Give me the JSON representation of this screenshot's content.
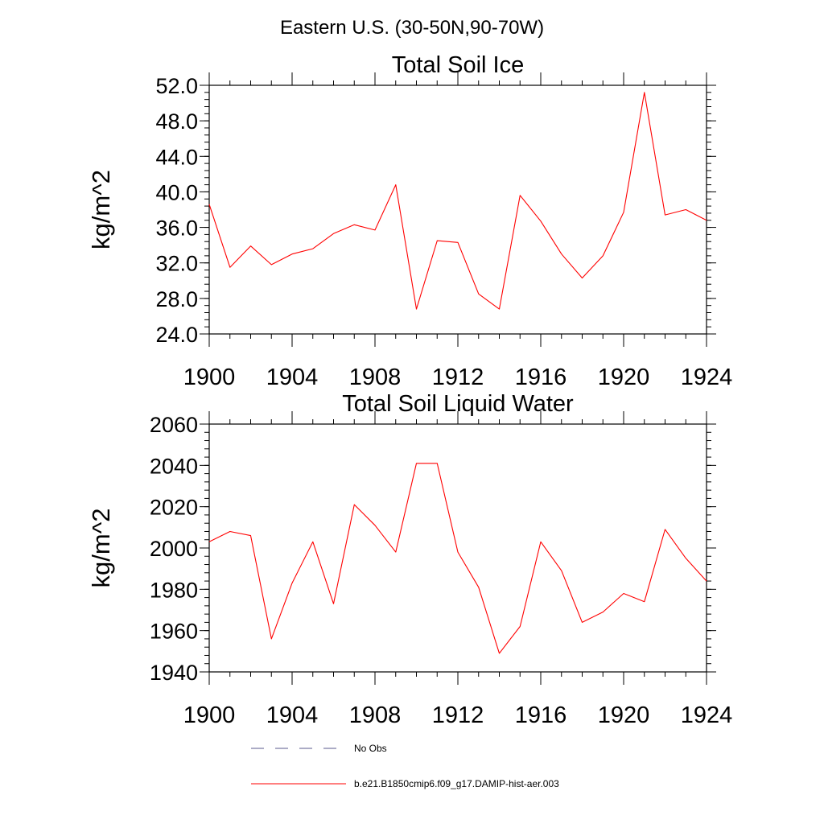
{
  "figure": {
    "suptitle": "Eastern U.S. (30-50N,90-70W)"
  },
  "legend": [
    {
      "label": "No Obs",
      "style": "dashed",
      "color": "#5a5a8c"
    },
    {
      "label": "b.e21.B1850cmip6.f09_g17.DAMIP-hist-aer.003",
      "style": "solid",
      "color": "#ff0000"
    }
  ],
  "chart_data": [
    {
      "type": "line",
      "title": "Total Soil Ice",
      "ylabel": "kg/m^2",
      "xlabel": "",
      "xlim": [
        1900,
        1924
      ],
      "ylim": [
        24.0,
        52.0
      ],
      "xticks": [
        "1900",
        "1904",
        "1908",
        "1912",
        "1916",
        "1920",
        "1924"
      ],
      "yticks": [
        "24.0",
        "28.0",
        "32.0",
        "36.0",
        "40.0",
        "44.0",
        "48.0",
        "52.0"
      ],
      "grid": false,
      "x": [
        1900,
        1901,
        1902,
        1903,
        1904,
        1905,
        1906,
        1907,
        1908,
        1909,
        1910,
        1911,
        1912,
        1913,
        1914,
        1915,
        1916,
        1917,
        1918,
        1919,
        1920,
        1921,
        1922,
        1923,
        1924
      ],
      "series": [
        {
          "name": "b.e21.B1850cmip6.f09_g17.DAMIP-hist-aer.003",
          "color": "#ff0000",
          "values": [
            38.6,
            31.5,
            33.9,
            31.8,
            33.0,
            33.6,
            35.3,
            36.3,
            35.7,
            40.8,
            26.8,
            34.5,
            34.3,
            28.5,
            26.8,
            39.6,
            36.7,
            33.0,
            30.3,
            32.8,
            37.7,
            51.2,
            37.4,
            38.0,
            36.8
          ]
        }
      ]
    },
    {
      "type": "line",
      "title": "Total Soil Liquid Water",
      "ylabel": "kg/m^2",
      "xlabel": "",
      "xlim": [
        1900,
        1924
      ],
      "ylim": [
        1940,
        2060
      ],
      "xticks": [
        "1900",
        "1904",
        "1908",
        "1912",
        "1916",
        "1920",
        "1924"
      ],
      "yticks": [
        "1940",
        "1960",
        "1980",
        "2000",
        "2020",
        "2040",
        "2060"
      ],
      "grid": false,
      "x": [
        1900,
        1901,
        1902,
        1903,
        1904,
        1905,
        1906,
        1907,
        1908,
        1909,
        1910,
        1911,
        1912,
        1913,
        1914,
        1915,
        1916,
        1917,
        1918,
        1919,
        1920,
        1921,
        1922,
        1923,
        1924
      ],
      "series": [
        {
          "name": "b.e21.B1850cmip6.f09_g17.DAMIP-hist-aer.003",
          "color": "#ff0000",
          "values": [
            2003,
            2008,
            2006,
            1956,
            1983,
            2003,
            1973,
            2021,
            2011,
            1998,
            2041,
            2041,
            1998,
            1981,
            1949,
            1962,
            2003,
            1989,
            1964,
            1969,
            1978,
            1974,
            2009,
            1995,
            1984
          ]
        }
      ]
    }
  ]
}
